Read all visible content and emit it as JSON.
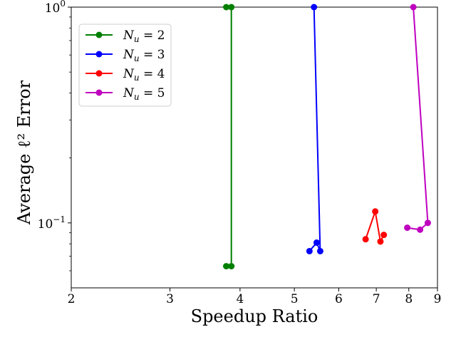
{
  "chart_data": {
    "type": "line",
    "xlabel": "Speedup Ratio",
    "ylabel": "Average ℓ² Error",
    "xscale": "log",
    "yscale": "log",
    "xlim": [
      2,
      9
    ],
    "ylim": [
      0.05,
      1.0
    ],
    "x_ticks": [
      2,
      3,
      4,
      5,
      6,
      7,
      8,
      9
    ],
    "y_ticks": [
      {
        "value": 0.1,
        "label": "10",
        "exp": "−1"
      },
      {
        "value": 1.0,
        "label": "10",
        "exp": "0"
      }
    ],
    "legend_position": "top-left",
    "grid": false,
    "series": [
      {
        "name": "N_u = 2",
        "name_base": "N",
        "name_sub": "u",
        "name_rest": " = 2",
        "color": "#008000",
        "points": [
          [
            3.78,
            0.063
          ],
          [
            3.86,
            0.063
          ],
          [
            3.86,
            1.0
          ],
          [
            3.78,
            1.0
          ]
        ]
      },
      {
        "name": "N_u = 3",
        "name_base": "N",
        "name_sub": "u",
        "name_rest": " = 3",
        "color": "#0000ff",
        "points": [
          [
            5.32,
            0.074
          ],
          [
            5.48,
            0.081
          ],
          [
            5.56,
            0.074
          ],
          [
            5.42,
            1.0
          ]
        ]
      },
      {
        "name": "N_u = 4",
        "name_base": "N",
        "name_sub": "u",
        "name_rest": " = 4",
        "color": "#ff0000",
        "points": [
          [
            6.7,
            0.084
          ],
          [
            6.97,
            0.113
          ],
          [
            7.12,
            0.082
          ],
          [
            7.22,
            0.088
          ]
        ]
      },
      {
        "name": "N_u = 5",
        "name_base": "N",
        "name_sub": "u",
        "name_rest": " = 5",
        "color": "#bf00bf",
        "points": [
          [
            7.95,
            0.095
          ],
          [
            8.38,
            0.093
          ],
          [
            8.65,
            0.1
          ],
          [
            8.15,
            1.0
          ]
        ]
      }
    ]
  }
}
